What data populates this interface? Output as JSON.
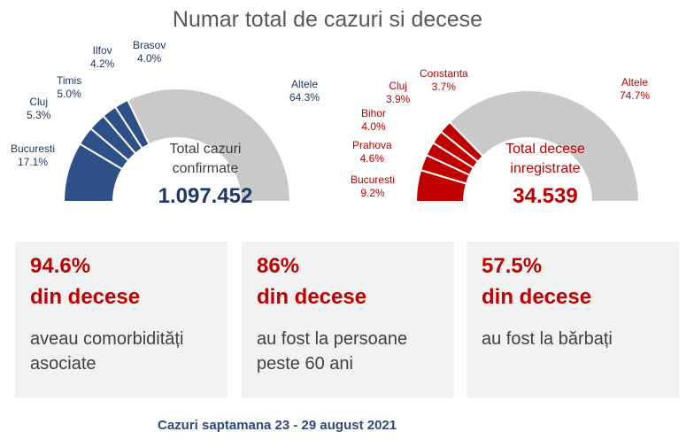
{
  "title": "Numar total de cazuri si decese",
  "chart_data": [
    {
      "type": "pie",
      "title": "",
      "slices": [
        {
          "label": "Bucuresti",
          "value": 17.1,
          "display": "17.1%"
        },
        {
          "label": "Cluj",
          "value": 5.3,
          "display": "5.3%"
        },
        {
          "label": "Timis",
          "value": 5.0,
          "display": "5.0%"
        },
        {
          "label": "Ilfov",
          "value": 4.2,
          "display": "4.2%"
        },
        {
          "label": "Brasov",
          "value": 4.0,
          "display": "4.0%"
        },
        {
          "label": "Altele",
          "value": 64.3,
          "display": "64.3%"
        }
      ],
      "center_text": [
        "Total cazuri",
        "confirmate"
      ],
      "total": "1.097.452",
      "colors": {
        "highlight": "#2e5088",
        "other": "#c9c9c9",
        "text": "#1f3864"
      }
    },
    {
      "type": "pie",
      "title": "",
      "slices": [
        {
          "label": "Bucuresti",
          "value": 9.2,
          "display": "9.2%"
        },
        {
          "label": "Prahova",
          "value": 4.6,
          "display": "4.6%"
        },
        {
          "label": "Bihor",
          "value": 4.0,
          "display": "4.0%"
        },
        {
          "label": "Cluj",
          "value": 3.9,
          "display": "3.9%"
        },
        {
          "label": "Constanta",
          "value": 3.7,
          "display": "3.7%"
        },
        {
          "label": "Altele",
          "value": 74.7,
          "display": "74.7%"
        }
      ],
      "center_text": [
        "Total decese",
        "inregistrate"
      ],
      "total": "34.539",
      "colors": {
        "highlight": "#c00000",
        "other": "#c9c9c9",
        "text": "#c00000"
      }
    }
  ],
  "cards": [
    {
      "pct": "94.6%",
      "sub": "din decese",
      "desc": "aveau comorbidități asociate"
    },
    {
      "pct": "86%",
      "sub": "din decese",
      "desc": "au fost la persoane peste 60 ani"
    },
    {
      "pct": "57.5%",
      "sub": "din decese",
      "desc": "au fost la bărbați"
    }
  ],
  "footer": "Cazuri saptamana 23 - 29 august 2021"
}
